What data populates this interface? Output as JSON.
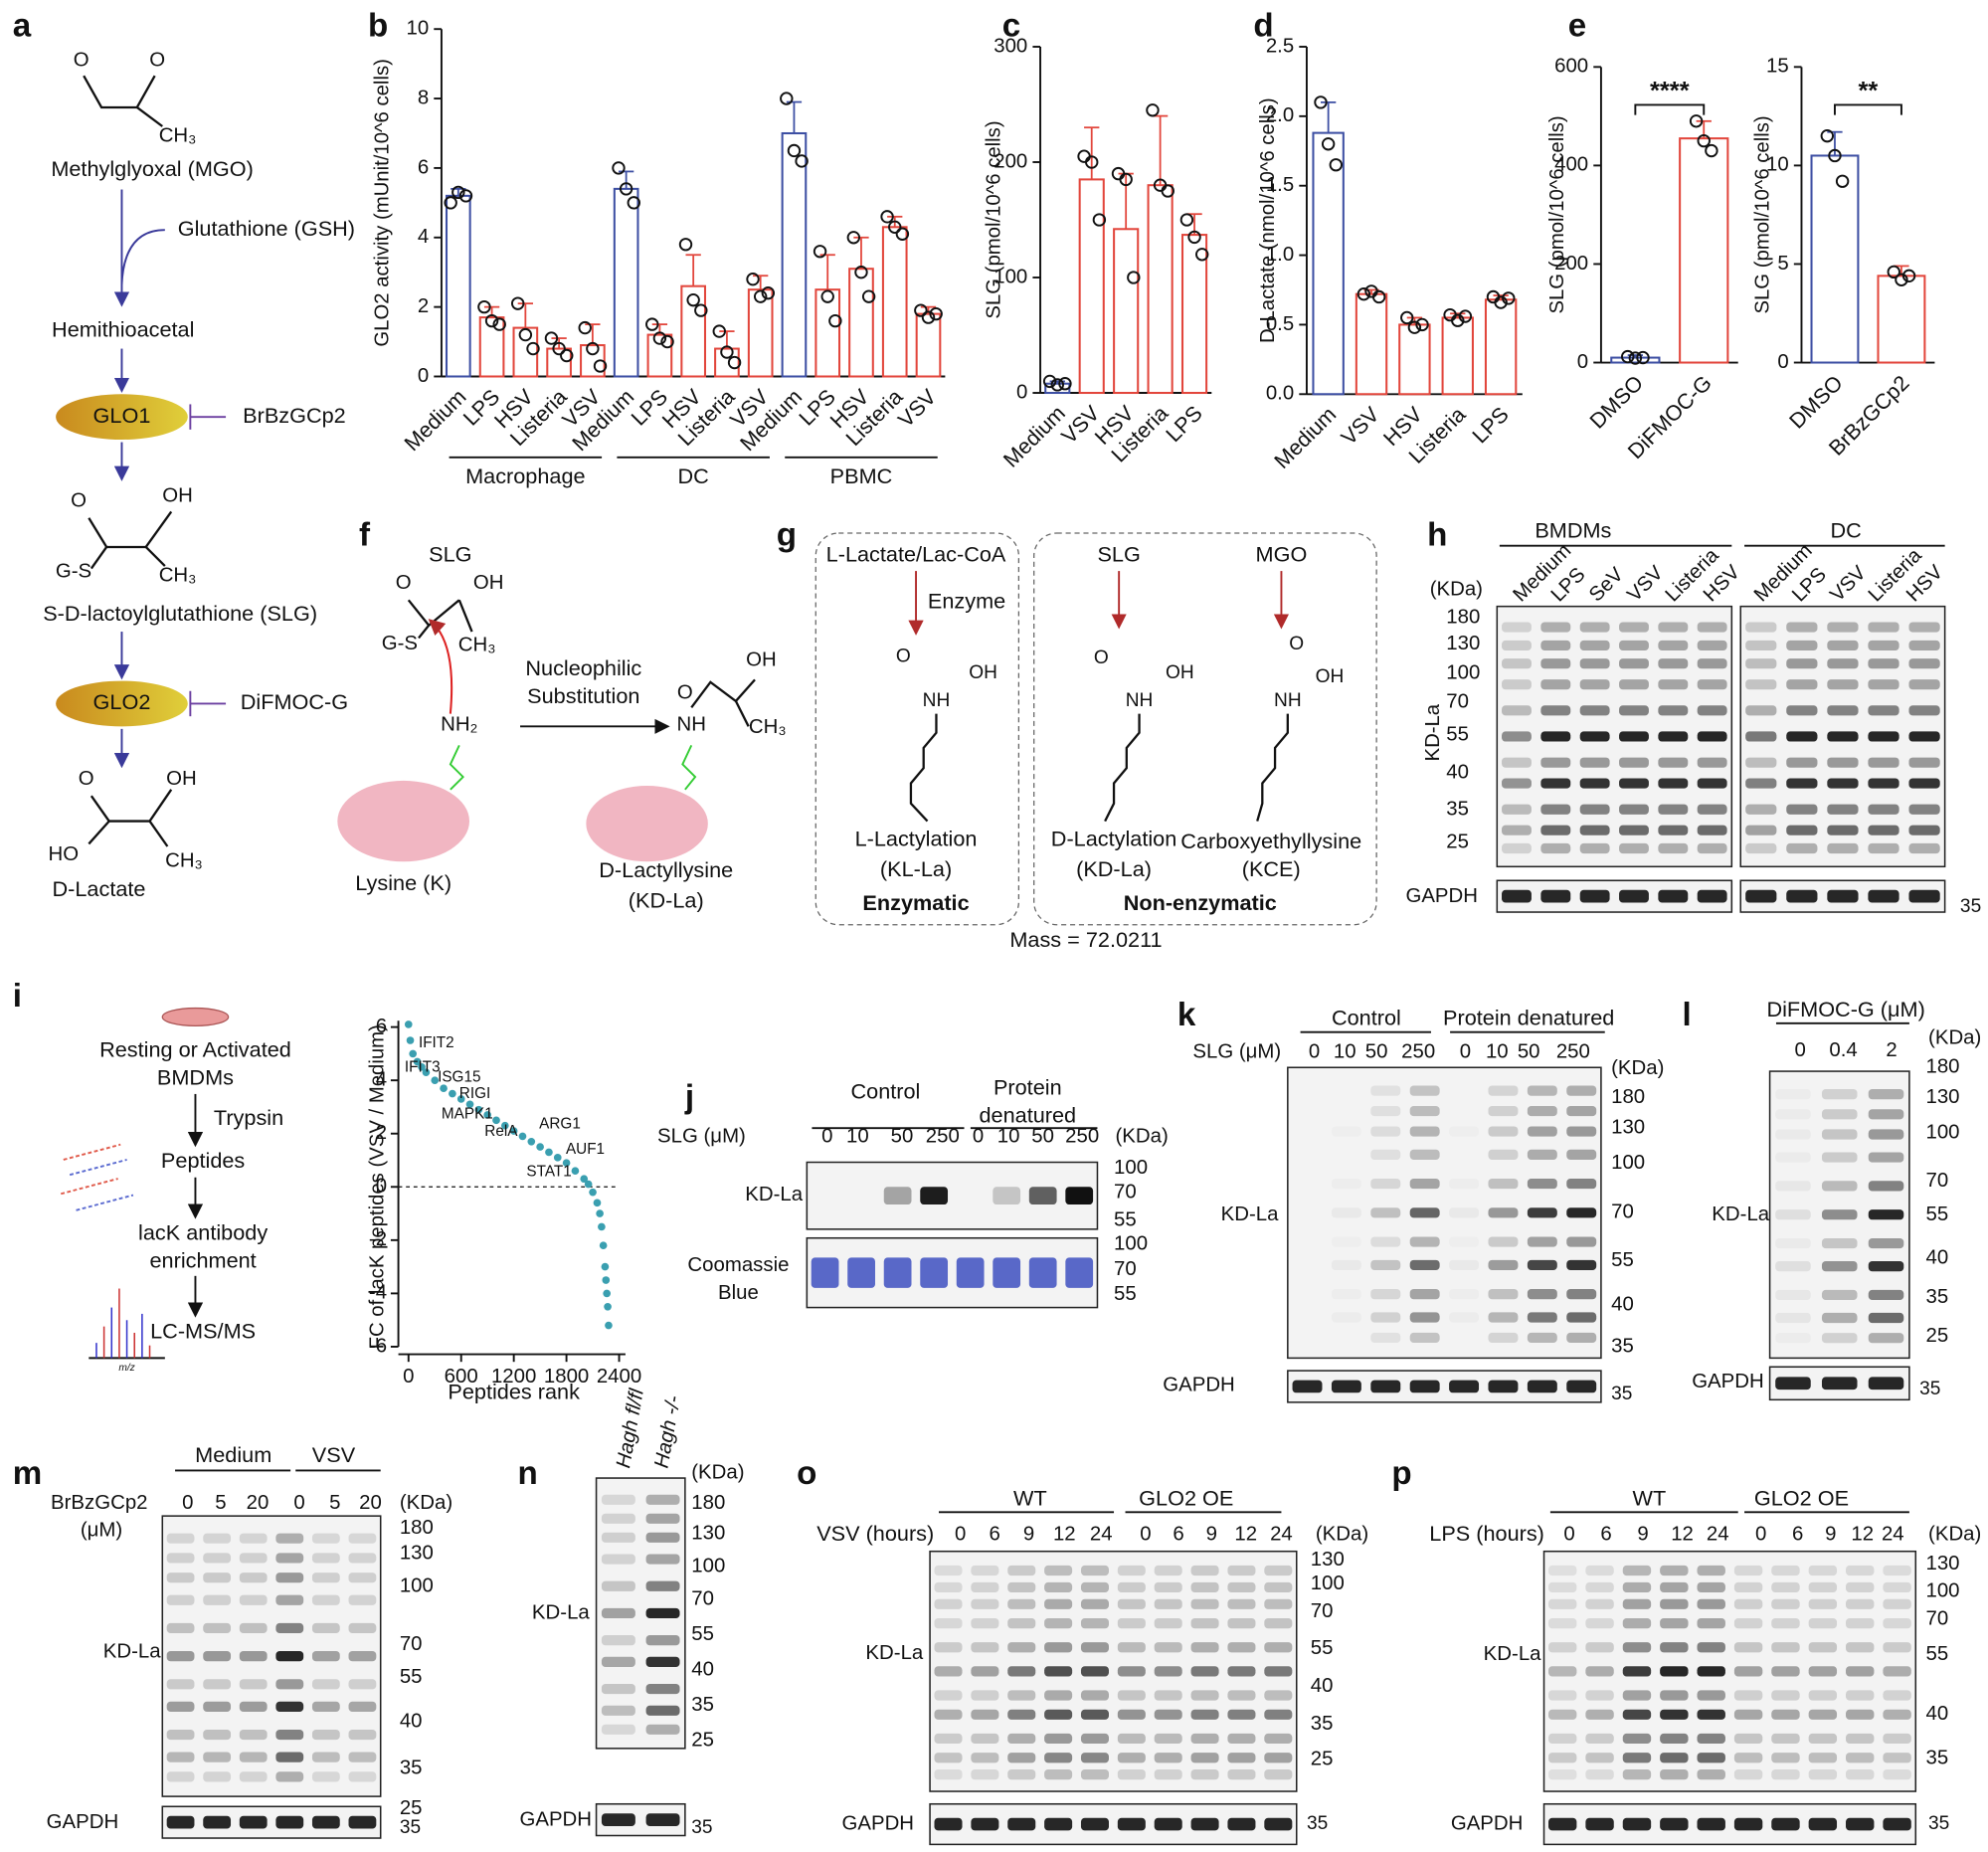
{
  "chart_data": [
    {
      "type": "bar",
      "ylabel": "GLO2 activity (mUnit/10^6 cells)",
      "categories": [
        "Medium",
        "LPS",
        "HSV",
        "Listeria",
        "VSV",
        "Medium",
        "LPS",
        "HSV",
        "Listeria",
        "VSV",
        "Medium",
        "LPS",
        "HSV",
        "Listeria",
        "VSV"
      ],
      "groups": [
        "Macrophage",
        "DC",
        "PBMC"
      ],
      "values": [
        5.2,
        1.7,
        1.4,
        0.8,
        0.9,
        5.4,
        1.2,
        2.6,
        0.8,
        2.5,
        7.0,
        2.5,
        3.1,
        4.3,
        1.8
      ],
      "errors": [
        0.2,
        0.3,
        0.7,
        0.3,
        0.6,
        0.5,
        0.3,
        0.9,
        0.5,
        0.4,
        0.9,
        1.0,
        0.9,
        0.3,
        0.2
      ],
      "points": [
        [
          5.0,
          5.3,
          5.2
        ],
        [
          2.0,
          1.6,
          1.5
        ],
        [
          2.1,
          1.2,
          0.8
        ],
        [
          1.1,
          0.8,
          0.6
        ],
        [
          1.4,
          0.8,
          0.3
        ],
        [
          6.0,
          5.4,
          5.0
        ],
        [
          1.5,
          1.1,
          1.0
        ],
        [
          3.8,
          2.2,
          1.9
        ],
        [
          1.3,
          0.7,
          0.4
        ],
        [
          2.8,
          2.3,
          2.4
        ],
        [
          8.0,
          6.5,
          6.2
        ],
        [
          3.6,
          2.3,
          1.6
        ],
        [
          4.0,
          3.0,
          2.3
        ],
        [
          4.6,
          4.3,
          4.1
        ],
        [
          1.9,
          1.7,
          1.8
        ]
      ],
      "colors": [
        "#3d4fa3",
        "#e2463c",
        "#e2463c",
        "#e2463c",
        "#e2463c",
        "#3d4fa3",
        "#e2463c",
        "#e2463c",
        "#e2463c",
        "#e2463c",
        "#3d4fa3",
        "#e2463c",
        "#e2463c",
        "#e2463c",
        "#e2463c"
      ],
      "ylim": [
        0,
        10
      ],
      "yticks": [
        0,
        2,
        4,
        6,
        8,
        10
      ]
    },
    {
      "type": "bar",
      "ylabel": "SLG (pmol/10^6 cells)",
      "categories": [
        "Medium",
        "VSV",
        "HSV",
        "Listeria",
        "LPS"
      ],
      "values": [
        8,
        185,
        142,
        180,
        137
      ],
      "errors": [
        2,
        45,
        48,
        60,
        18
      ],
      "points": [
        [
          10,
          7,
          8
        ],
        [
          205,
          200,
          150
        ],
        [
          190,
          185,
          100
        ],
        [
          245,
          180,
          175
        ],
        [
          150,
          135,
          120
        ]
      ],
      "colors": [
        "#3d4fa3",
        "#e2463c",
        "#e2463c",
        "#e2463c",
        "#e2463c"
      ],
      "ylim": [
        0,
        300
      ],
      "yticks": [
        0,
        100,
        200,
        300
      ]
    },
    {
      "type": "bar",
      "ylabel": "D-Lactate (nmol/10^6 cells)",
      "categories": [
        "Medium",
        "VSV",
        "HSV",
        "Listeria",
        "LPS"
      ],
      "values": [
        1.88,
        0.72,
        0.5,
        0.55,
        0.68
      ],
      "errors": [
        0.22,
        0.03,
        0.05,
        0.03,
        0.03
      ],
      "points": [
        [
          2.1,
          1.8,
          1.65
        ],
        [
          0.72,
          0.74,
          0.7
        ],
        [
          0.55,
          0.48,
          0.5
        ],
        [
          0.57,
          0.53,
          0.56
        ],
        [
          0.7,
          0.66,
          0.69
        ]
      ],
      "colors": [
        "#3d4fa3",
        "#e2463c",
        "#e2463c",
        "#e2463c",
        "#e2463c"
      ],
      "ylim": [
        0,
        2.5
      ],
      "yticks": [
        {
          "value": 0,
          "label": "0.0"
        },
        0.5,
        {
          "value": 1,
          "label": "1.0"
        },
        1.5,
        {
          "value": 2,
          "label": "2.0"
        },
        2.5
      ]
    },
    {
      "type": "bar",
      "ylabel": "SLG (pmol/10^6 cells)",
      "categories": [
        "DMSO",
        "DiFMOC-G"
      ],
      "values": [
        10,
        455
      ],
      "errors": [
        5,
        35
      ],
      "points": [
        [
          12,
          9,
          10
        ],
        [
          490,
          450,
          430
        ]
      ],
      "colors": [
        "#3d4fa3",
        "#e2463c"
      ],
      "significance": "****",
      "ylim": [
        0,
        600
      ],
      "yticks": [
        0,
        200,
        400,
        600
      ]
    },
    {
      "type": "bar",
      "ylabel": "SLG (pmol/10^6 cells)",
      "categories": [
        "DMSO",
        "BrBzGCp2"
      ],
      "values": [
        10.5,
        4.4
      ],
      "errors": [
        1.2,
        0.5
      ],
      "points": [
        [
          11.5,
          10.5,
          9.2
        ],
        [
          4.6,
          4.2,
          4.4
        ]
      ],
      "colors": [
        "#3d4fa3",
        "#e2463c"
      ],
      "significance": "**",
      "ylim": [
        0,
        15
      ],
      "yticks": [
        0,
        5,
        10,
        15
      ]
    },
    {
      "type": "scatter",
      "ylabel": "FC of lacK peptides (VSV / Medium)",
      "xlabel": "Peptides rank",
      "color": "#3a9fb0",
      "x": [
        0,
        20,
        50,
        100,
        150,
        200,
        300,
        400,
        500,
        600,
        700,
        800,
        900,
        1000,
        1100,
        1200,
        1300,
        1400,
        1500,
        1600,
        1700,
        1800,
        1900,
        2000,
        2050,
        2100,
        2150,
        2180,
        2200,
        2220,
        2240,
        2250,
        2260,
        2270,
        2280
      ],
      "y": [
        6.1,
        5.5,
        5.0,
        4.7,
        4.5,
        4.3,
        4.0,
        3.7,
        3.5,
        3.3,
        3.1,
        2.9,
        2.7,
        2.5,
        2.3,
        2.1,
        1.9,
        1.7,
        1.5,
        1.3,
        1.1,
        0.9,
        0.6,
        0.3,
        0.1,
        -0.2,
        -0.6,
        -1.0,
        -1.5,
        -2.2,
        -3.0,
        -3.5,
        -4.0,
        -4.5,
        -5.2
      ],
      "annotations": [
        "IFIT2",
        "IFIT3",
        "ISG15",
        "RIGI",
        "MAPK1",
        "RelA",
        "ARG1",
        "AUF1",
        "STAT1"
      ],
      "xlim": [
        0,
        2400
      ],
      "xticks": [
        0,
        600,
        1200,
        1800,
        2400
      ],
      "ylim": [
        -6,
        6
      ],
      "yticks": [
        -6,
        -4,
        -2,
        0,
        2,
        4,
        6
      ]
    }
  ],
  "diagrams": {
    "panel_labels": [
      "a",
      "b",
      "c",
      "d",
      "e",
      "f",
      "g",
      "h",
      "i",
      "j",
      "k",
      "l",
      "m",
      "n",
      "o",
      "p"
    ],
    "a": {
      "mgo": "Methylglyoxal (MGO)",
      "gsh": "Glutathione (GSH)",
      "hemi": "Hemithioacetal",
      "glo1": "GLO1",
      "bz": "BrBzGCp2",
      "slg": "S-D-lactoylglutathione (SLG)",
      "glo2": "GLO2",
      "dif": "DiFMOC-G",
      "dlac": "D-Lactate",
      "atoms": [
        "O",
        "O",
        "CH₃",
        "O",
        "OH",
        "G-S",
        "CH₃",
        "O",
        "OH",
        "HO",
        "CH₃"
      ]
    },
    "f": {
      "slg": "SLG",
      "atoms": [
        "O",
        "OH",
        "G-S",
        "CH₃",
        "NH₂",
        "O",
        "OH",
        "NH",
        "CH₃"
      ],
      "nuc": "Nucleophilic",
      "sub": "Substitution",
      "lys": "Lysine (K)",
      "dlys": "D-Lactyllysine",
      "kdla": "(KD-La)"
    },
    "g": {
      "llac": "L-Lactate/Lac-CoA",
      "enzyme": "Enzyme",
      "slg": "SLG",
      "mgo": "MGO",
      "atoms": [
        "O",
        "OH",
        "NH",
        "O",
        "OH",
        "NH",
        "O",
        "OH",
        "NH"
      ],
      "ll": "L-Lactylation",
      "kll": "(KL-La)",
      "dl": "D-Lactylation",
      "kdl": "(KD-La)",
      "ce": "Carboxyethyllysine",
      "kce": "(KCE)",
      "enz": "Enzymatic",
      "nonenz": "Non-enzymatic",
      "mass": "Mass = 72.0211"
    },
    "h": {
      "bmdm": "BMDMs",
      "dc": "DC",
      "kda": "(KDa)",
      "lanes1": [
        "Medium",
        "LPS",
        "SeV",
        "VSV",
        "Listeria",
        "HSV"
      ],
      "lanes2": [
        "Medium",
        "LPS",
        "VSV",
        "Listeria",
        "HSV"
      ],
      "markers": [
        180,
        130,
        100,
        70,
        55,
        40,
        35,
        25
      ],
      "kdla": "KD-La",
      "gapdh": "GAPDH",
      "g35": 35
    },
    "i": {
      "rest": "Resting or Activated",
      "bmdm": "BMDMs",
      "tryp": "Trypsin",
      "pep": "Peptides",
      "lack": "lacK antibody",
      "enr": "enrichment",
      "lcms": "LC-MS/MS",
      "mz": "m/z"
    },
    "j": {
      "control": "Control",
      "prot1": "Protein",
      "prot2": "denatured",
      "slg": "SLG (μM)",
      "conc": [
        0,
        10,
        50,
        250,
        0,
        10,
        50,
        250
      ],
      "kda": "(KDa)",
      "m1": [
        100,
        70,
        55
      ],
      "kdla": "KD-La",
      "coom1": "Coomassie",
      "coom2": "Blue",
      "m2": [
        100,
        70,
        55
      ]
    },
    "k": {
      "control": "Control",
      "prot": "Protein denatured",
      "slg": "SLG (μM)",
      "conc": [
        0,
        10,
        50,
        250,
        0,
        10,
        50,
        250
      ],
      "kda": "(KDa)",
      "markers": [
        180,
        130,
        100,
        70,
        55,
        40,
        35
      ],
      "kdla": "KD-La",
      "gapdh": "GAPDH",
      "g35": 35
    },
    "l": {
      "dif": "DiFMOC-G (μM)",
      "conc": [
        0,
        0.4,
        2
      ],
      "kda": "(KDa)",
      "markers": [
        180,
        130,
        100,
        70,
        55,
        40,
        35,
        25
      ],
      "kdla": "KD-La",
      "gapdh": "GAPDH",
      "g35": 35
    },
    "m": {
      "med": "Medium",
      "vsv": "VSV",
      "bz": "BrBzGCp2",
      "um": "(μM)",
      "conc": [
        0,
        5,
        20,
        0,
        5,
        20
      ],
      "kda": "(KDa)",
      "markers": [
        180,
        130,
        100,
        70,
        55,
        40,
        35,
        25
      ],
      "kdla": "KD-La",
      "gapdh": "GAPDH",
      "g35": 35
    },
    "n": {
      "lanes": [
        "Hagh fl/fl",
        "Hagh -/-"
      ],
      "kda": "(KDa)",
      "markers": [
        180,
        130,
        100,
        70,
        55,
        40,
        35,
        25
      ],
      "kdla": "KD-La",
      "gapdh": "GAPDH",
      "g35": 35
    },
    "o": {
      "wt": "WT",
      "oe": "GLO2 OE",
      "vsv": "VSV (hours)",
      "hours": [
        0,
        6,
        9,
        12,
        24,
        0,
        6,
        9,
        12,
        24
      ],
      "kda": "(KDa)",
      "markers": [
        130,
        100,
        70,
        55,
        40,
        35,
        25
      ],
      "kdla": "KD-La",
      "gapdh": "GAPDH",
      "g35": 35
    },
    "p": {
      "wt": "WT",
      "oe": "GLO2 OE",
      "lps": "LPS (hours)",
      "hours": [
        0,
        6,
        9,
        12,
        24,
        0,
        6,
        9,
        12,
        24
      ],
      "kda": "(KDa)",
      "markers": [
        130,
        100,
        70,
        55,
        40,
        35
      ],
      "kdla": "KD-La",
      "gapdh": "GAPDH",
      "g35": 35
    }
  }
}
